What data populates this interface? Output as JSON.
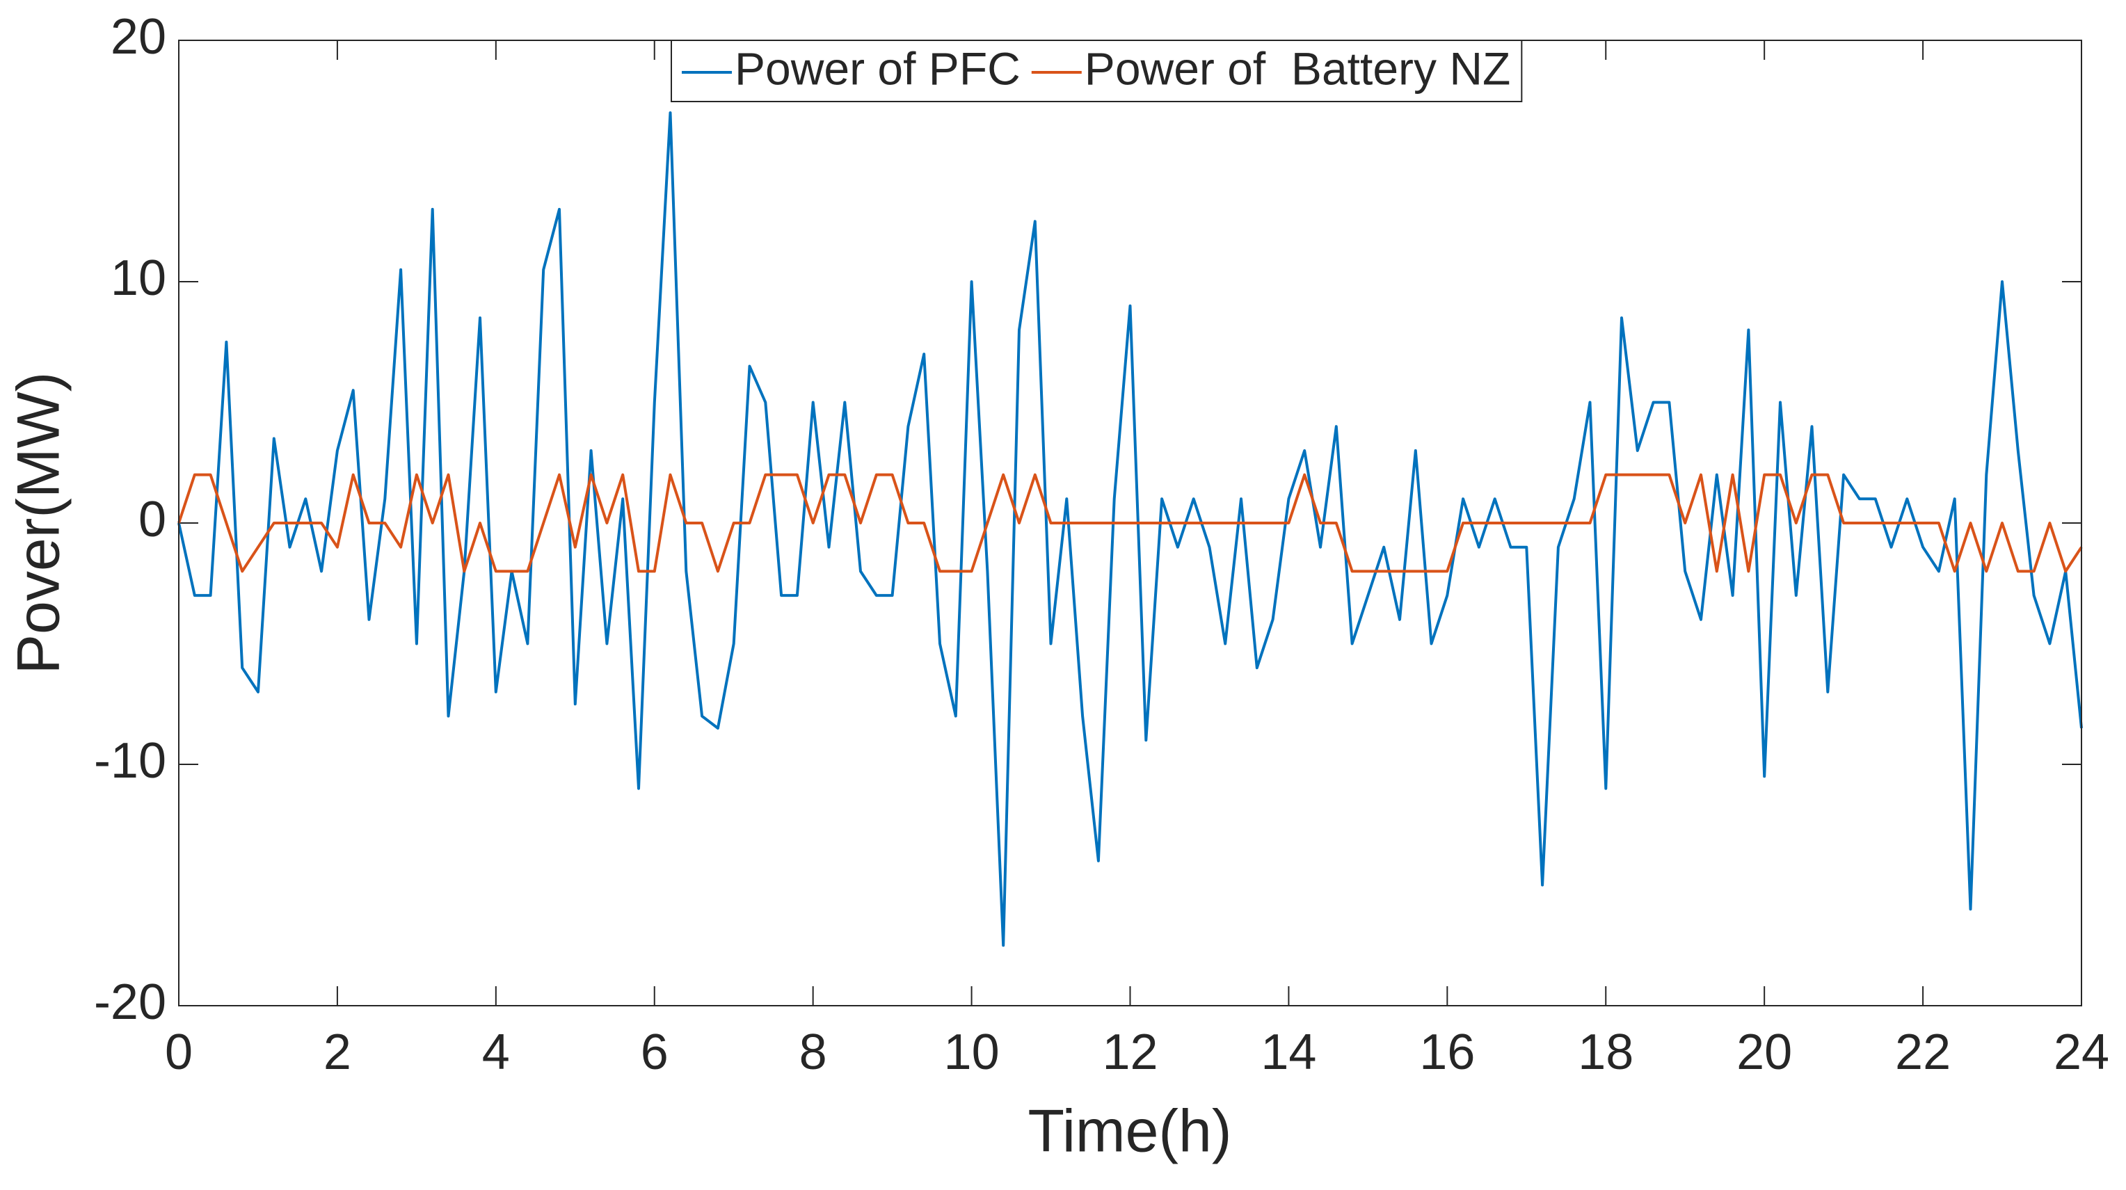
{
  "chart_data": {
    "type": "line",
    "xlabel": "Time(h)",
    "ylabel": "Pover(MW)",
    "x": [
      0,
      0.2,
      0.4,
      0.6,
      0.8,
      1,
      1.2,
      1.4,
      1.6,
      1.8,
      2,
      2.2,
      2.4,
      2.6,
      2.8,
      3,
      3.2,
      3.4,
      3.6,
      3.8,
      4,
      4.2,
      4.4,
      4.6,
      4.8,
      5,
      5.2,
      5.4,
      5.6,
      5.8,
      6,
      6.2,
      6.4,
      6.6,
      6.8,
      7,
      7.2,
      7.4,
      7.6,
      7.8,
      8,
      8.2,
      8.4,
      8.6,
      8.8,
      9,
      9.2,
      9.4,
      9.6,
      9.8,
      10,
      10.2,
      10.4,
      10.6,
      10.8,
      11,
      11.2,
      11.4,
      11.6,
      11.8,
      12,
      12.2,
      12.4,
      12.6,
      12.8,
      13,
      13.2,
      13.4,
      13.6,
      13.8,
      14,
      14.2,
      14.4,
      14.6,
      14.8,
      15,
      15.2,
      15.4,
      15.6,
      15.8,
      16,
      16.2,
      16.4,
      16.6,
      16.8,
      17,
      17.2,
      17.4,
      17.6,
      17.8,
      18,
      18.2,
      18.4,
      18.6,
      18.8,
      19,
      19.2,
      19.4,
      19.6,
      19.8,
      20,
      20.2,
      20.4,
      20.6,
      20.8,
      21,
      21.2,
      21.4,
      21.6,
      21.8,
      22,
      22.2,
      22.4,
      22.6,
      22.8,
      23,
      23.2,
      23.4,
      23.6,
      23.8,
      24
    ],
    "series": [
      {
        "name": "Power of PFC",
        "color": "#0072bd",
        "values": [
          0,
          -3,
          -3,
          7.5,
          -6,
          -7,
          3.5,
          -1,
          1,
          -2,
          3,
          5.5,
          -4,
          1,
          10.5,
          -5,
          13,
          -8,
          -2,
          8.5,
          -7,
          -2,
          -5,
          10.5,
          13,
          -7.5,
          3,
          -5,
          1,
          -11,
          5,
          17,
          -2,
          -8,
          -8.5,
          -5,
          6.5,
          5,
          -3,
          -3,
          5,
          -1,
          5,
          -2,
          -3,
          -3,
          4,
          7,
          -5,
          -8,
          10,
          -2,
          -17.5,
          8,
          12.5,
          -5,
          1,
          -8,
          -14,
          1,
          9,
          -9,
          1,
          -1,
          1,
          -1,
          -5,
          1,
          -6,
          -4,
          1,
          3,
          -1,
          4,
          -5,
          -3,
          -1,
          -4,
          3,
          -5,
          -3,
          1,
          -1,
          1,
          -1,
          -1,
          -15,
          -1,
          1,
          5,
          -11,
          8.5,
          3,
          5,
          5,
          -2,
          -4,
          2,
          -3,
          8,
          -10.5,
          5,
          -3,
          4,
          -7,
          2,
          1,
          1,
          -1,
          1,
          -1,
          -2,
          1,
          -16,
          2,
          10,
          3,
          -3,
          -5,
          -2,
          -8.5
        ]
      },
      {
        "name": "Power of  Battery NZ",
        "color": "#d95319",
        "values": [
          0,
          2,
          2,
          0,
          -2,
          -1,
          0,
          0,
          0,
          0,
          -1,
          2,
          0,
          0,
          -1,
          2,
          0,
          2,
          -2,
          0,
          -2,
          -2,
          -2,
          0,
          2,
          -1,
          2,
          0,
          2,
          -2,
          -2,
          2,
          0,
          0,
          -2,
          0,
          0,
          2,
          2,
          2,
          0,
          2,
          2,
          0,
          2,
          2,
          0,
          0,
          -2,
          -2,
          -2,
          0,
          2,
          0,
          2,
          0,
          0,
          0,
          0,
          0,
          0,
          0,
          0,
          0,
          0,
          0,
          0,
          0,
          0,
          0,
          0,
          2,
          0,
          0,
          -2,
          -2,
          -2,
          -2,
          -2,
          -2,
          -2,
          0,
          0,
          0,
          0,
          0,
          0,
          0,
          0,
          0,
          2,
          2,
          2,
          2,
          2,
          0,
          2,
          -2,
          2,
          -2,
          2,
          2,
          0,
          2,
          2,
          0,
          0,
          0,
          0,
          0,
          0,
          0,
          -2,
          0,
          -2,
          0,
          -2,
          -2,
          0,
          -2,
          -1
        ]
      }
    ],
    "xlim": [
      0,
      24
    ],
    "xticks": [
      0,
      2,
      4,
      6,
      8,
      10,
      12,
      14,
      16,
      18,
      20,
      22,
      24
    ],
    "ylim": [
      -20,
      20
    ],
    "yticks": [
      -20,
      -10,
      0,
      10,
      20
    ],
    "legend": "top"
  }
}
